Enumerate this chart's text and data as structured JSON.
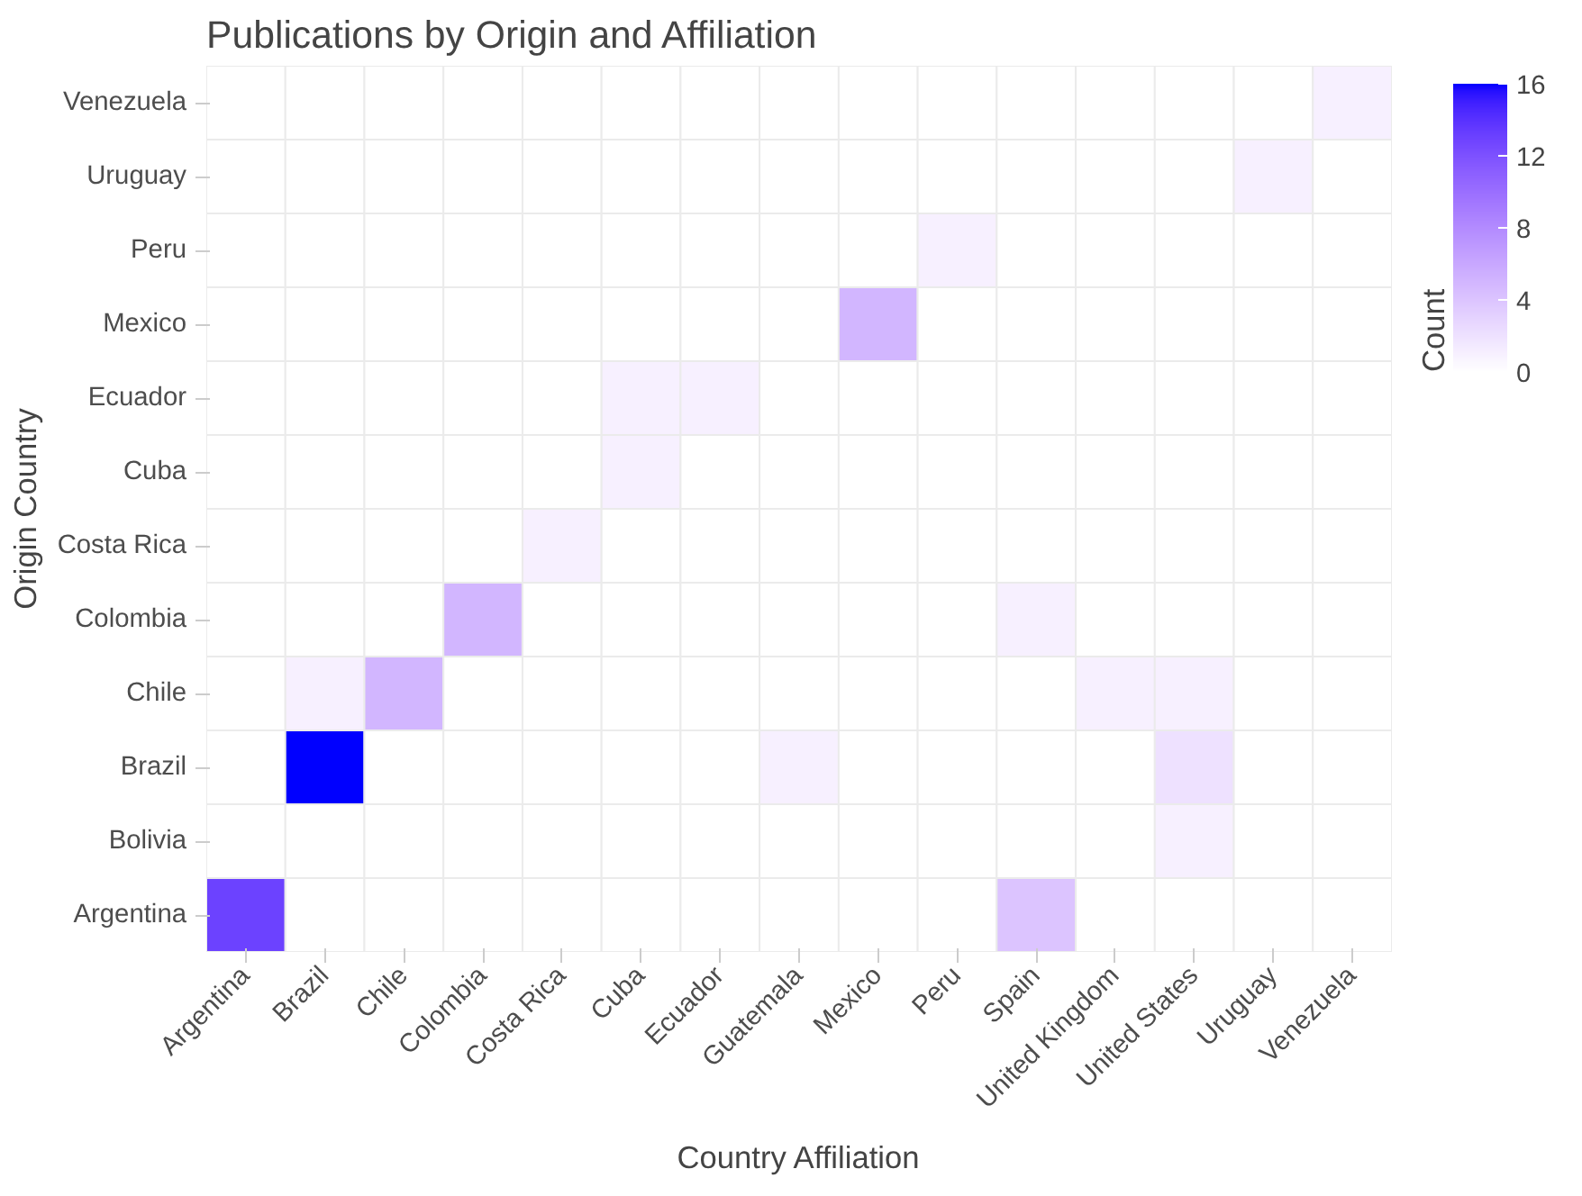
{
  "chart_data": {
    "type": "heatmap",
    "title": "Publications by Origin and Affiliation",
    "xlabel": "Country Affiliation",
    "ylabel": "Origin Country",
    "clabel": "Count",
    "categories": [
      "Argentina",
      "Brazil",
      "Chile",
      "Colombia",
      "Costa Rica",
      "Cuba",
      "Ecuador",
      "Guatemala",
      "Mexico",
      "Peru",
      "Spain",
      "United Kingdom",
      "United States",
      "Uruguay",
      "Venezuela"
    ],
    "y_categories": [
      "Venezuela",
      "Uruguay",
      "Peru",
      "Mexico",
      "Ecuador",
      "Cuba",
      "Costa Rica",
      "Colombia",
      "Chile",
      "Brazil",
      "Bolivia",
      "Argentina"
    ],
    "cells": [
      [
        0,
        0,
        0,
        0,
        0,
        0,
        0,
        0,
        0,
        0,
        0,
        0,
        0,
        0,
        1
      ],
      [
        0,
        0,
        0,
        0,
        0,
        0,
        0,
        0,
        0,
        0,
        0,
        0,
        0,
        1,
        0
      ],
      [
        0,
        0,
        0,
        0,
        0,
        0,
        0,
        0,
        0,
        1,
        0,
        0,
        0,
        0,
        0
      ],
      [
        0,
        0,
        0,
        0,
        0,
        0,
        0,
        0,
        5,
        0,
        0,
        0,
        0,
        0,
        0
      ],
      [
        0,
        0,
        0,
        0,
        0,
        1,
        1,
        0,
        0,
        0,
        0,
        0,
        0,
        0,
        0
      ],
      [
        0,
        0,
        0,
        0,
        0,
        1,
        0,
        0,
        0,
        0,
        0,
        0,
        0,
        0,
        0
      ],
      [
        0,
        0,
        0,
        0,
        1,
        0,
        0,
        0,
        0,
        0,
        0,
        0,
        0,
        0,
        0
      ],
      [
        0,
        0,
        0,
        5,
        0,
        0,
        0,
        0,
        0,
        0,
        1,
        0,
        0,
        0,
        0
      ],
      [
        0,
        1,
        5,
        0,
        0,
        0,
        0,
        0,
        0,
        0,
        0,
        1,
        1,
        0,
        0
      ],
      [
        0,
        16,
        0,
        0,
        0,
        0,
        0,
        1,
        0,
        0,
        0,
        0,
        2,
        0,
        0
      ],
      [
        0,
        0,
        0,
        0,
        0,
        0,
        0,
        0,
        0,
        0,
        0,
        0,
        1,
        0,
        0
      ],
      [
        13,
        0,
        0,
        0,
        0,
        0,
        0,
        0,
        0,
        0,
        4,
        0,
        0,
        0,
        0
      ]
    ],
    "clim": [
      0,
      16
    ],
    "cticks": [
      0,
      4,
      8,
      12,
      16
    ]
  }
}
